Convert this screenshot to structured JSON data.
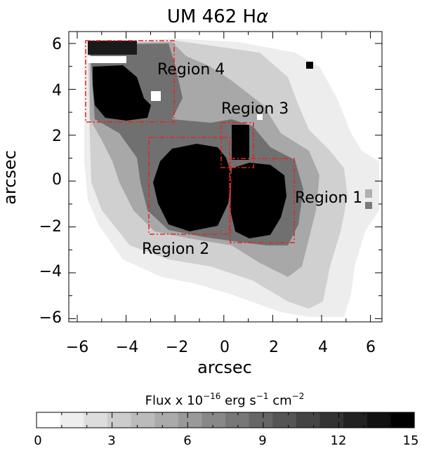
{
  "figure": {
    "title": "UM 462 H",
    "title_symbol": "α",
    "x_axis_label": "arcsec",
    "y_axis_label": "arcsec",
    "x_ticks": [
      "−6",
      "−4",
      "−2",
      "0",
      "2",
      "4",
      "6"
    ],
    "y_ticks": [
      "6",
      "4",
      "2",
      "0",
      "−2",
      "−4",
      "−6"
    ],
    "regions": [
      {
        "id": "region-4",
        "label": "Region 4"
      },
      {
        "id": "region-3",
        "label": "Region 3"
      },
      {
        "id": "region-2",
        "label": "Region 2"
      },
      {
        "id": "region-1",
        "label": "Region 1"
      }
    ],
    "colorbar": {
      "label_prefix": "Flux x 10",
      "exp1": "−16",
      "mid1": " erg s",
      "exp2": "−1",
      "mid2": " cm",
      "exp3": "−2",
      "ticks": [
        "0",
        "3",
        "6",
        "9",
        "12",
        "15"
      ],
      "min": 0,
      "max": 15,
      "levels": 16
    },
    "region_box_color": "#e8231e",
    "colormap": "grayscale (white = 0, black = 15)"
  }
}
